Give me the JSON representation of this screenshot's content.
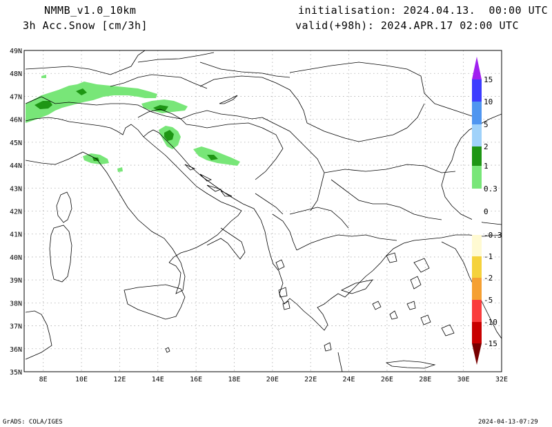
{
  "header": {
    "model": "NMMB_v1.0_10km",
    "field": "3h Acc.Snow [cm/3h]",
    "init": "initialisation: 2024.04.13.  00:00 UTC",
    "valid": "valid(+98h): 2024.APR.17 02:00 UTC"
  },
  "axes": {
    "lat_labels": [
      "49N",
      "48N",
      "47N",
      "46N",
      "45N",
      "44N",
      "43N",
      "42N",
      "41N",
      "40N",
      "39N",
      "38N",
      "37N",
      "36N",
      "35N"
    ],
    "lon_labels": [
      "8E",
      "10E",
      "12E",
      "14E",
      "16E",
      "18E",
      "20E",
      "22E",
      "24E",
      "26E",
      "28E",
      "30E",
      "32E"
    ]
  },
  "colorbar": {
    "labels": [
      "15",
      "10",
      "5",
      "2",
      "1",
      "0.3",
      "0",
      "-0.3",
      "-1",
      "-2",
      "-5",
      "-10",
      "-15"
    ],
    "colors": {
      "above": "#a020f0",
      "c10_15": "#3c3cff",
      "c5_10": "#5096f0",
      "c2_5": "#a0d2fa",
      "c1_2": "#1e9614",
      "c03_1": "#78e678",
      "neutral": "#ffffff",
      "n03": "#fffad2",
      "n1": "#f5d23c",
      "n2": "#f5a032",
      "n5": "#fa3c3c",
      "n10": "#c80000",
      "below": "#780000"
    }
  },
  "footer": {
    "left": "GrADS: COLA/IGES",
    "right": "2024-04-13-07:29"
  }
}
